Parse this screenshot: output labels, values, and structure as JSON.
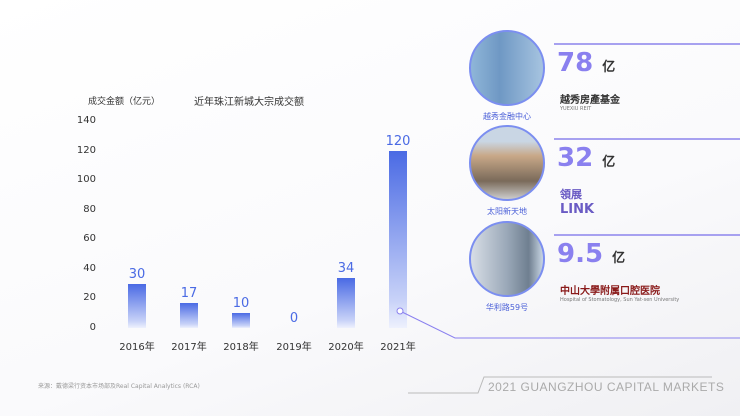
{
  "chart_data": {
    "type": "bar",
    "title": "近年珠江新城大宗成交额",
    "ylabel": "成交金额（亿元）",
    "ylim": [
      0,
      140
    ],
    "yticks": [
      0,
      20,
      40,
      60,
      80,
      100,
      120,
      140
    ],
    "categories": [
      "2016年",
      "2017年",
      "2018年",
      "2019年",
      "2020年",
      "2021年"
    ],
    "values": [
      30,
      17,
      10,
      0,
      34,
      120
    ],
    "bar_color": "#4a6ae4"
  },
  "deals": [
    {
      "amount": "78",
      "unit": "亿",
      "name": "越秀金融中心",
      "buyer": "越秀房產基金",
      "buyer_sub": "YUEXIU REIT"
    },
    {
      "amount": "32",
      "unit": "亿",
      "name": "太阳新天地",
      "buyer": "領展",
      "buyer_sub": "LINK"
    },
    {
      "amount": "9.5",
      "unit": "亿",
      "name": "华利路59号",
      "buyer": "中山大學附属口腔医院",
      "buyer_sub": "Hospital of Stomatology, Sun Yat-sen University"
    }
  ],
  "source": "来源：戴德梁行资本市场部及Real Capital Analytics (RCA)",
  "footer": "2021 GUANGZHOU CAPITAL MARKETS",
  "accent": "#8a80ef"
}
